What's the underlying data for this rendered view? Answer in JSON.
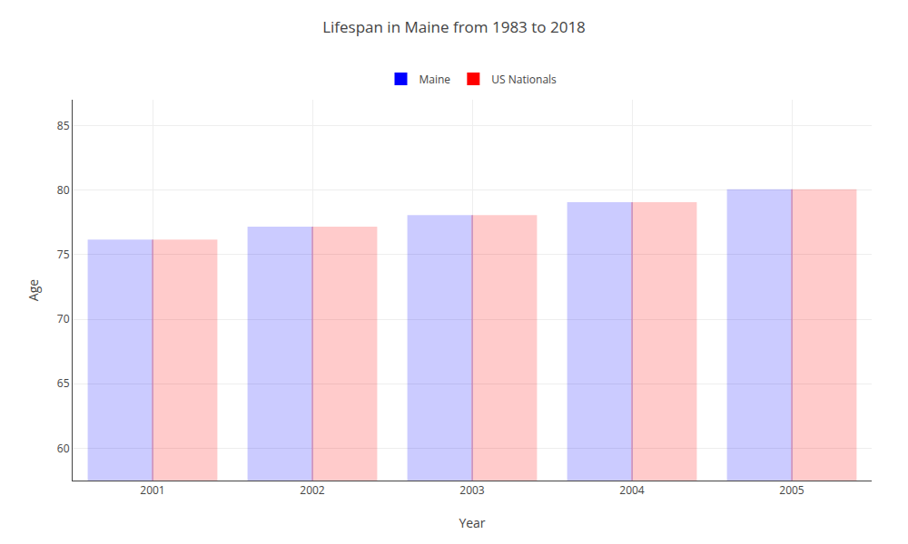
{
  "chart_data": {
    "type": "bar",
    "title": "Lifespan in Maine from 1983 to 2018",
    "x_label": "Year",
    "y_label": "Age",
    "categories": [
      "2001",
      "2002",
      "2003",
      "2004",
      "2005"
    ],
    "series": [
      {
        "name": "Maine",
        "color": "#0000ff",
        "values": [
          76.1,
          77.1,
          78.0,
          79.0,
          80.0
        ]
      },
      {
        "name": "US Nationals",
        "color": "#ff0000",
        "values": [
          76.1,
          77.1,
          78.0,
          79.0,
          80.0
        ]
      }
    ],
    "ylim": [
      57.5,
      87
    ],
    "yticks": [
      60,
      65,
      70,
      75,
      80,
      85
    ],
    "grid": true,
    "legend": "top"
  }
}
